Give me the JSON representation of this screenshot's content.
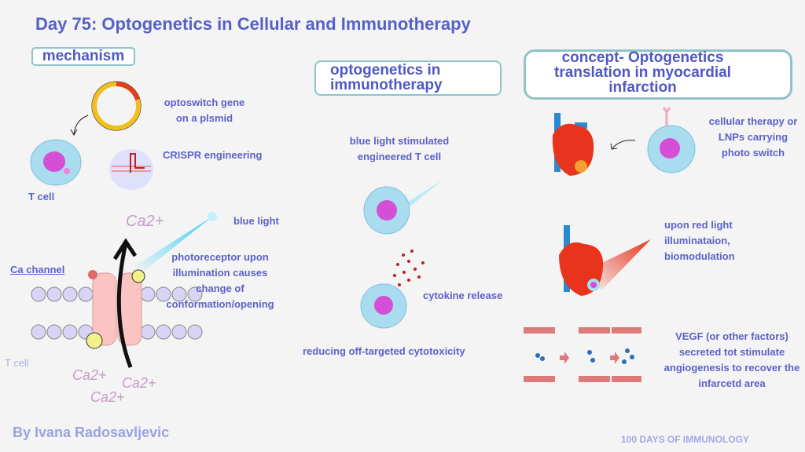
{
  "title": "Day 75: Optogenetics in Cellular and Immunotherapy",
  "sections": {
    "mechanism": {
      "heading": "mechanism",
      "plasmid_label": "optoswitch gene on a plsmid",
      "crispr_label": "CRISPR engineering",
      "tcell_label": "T cell",
      "blue_light_label": "blue light",
      "ca_channel_label": "Ca channel",
      "photoreceptor_label": "photoreceptor upon illumination causes change of conformation/opening",
      "membrane_tcell_label": "T cell",
      "ion_label": "Ca2+"
    },
    "immunotherapy": {
      "heading": "optogenetics in immunotherapy",
      "stimulated_label": "blue light stimulated engineered T cell",
      "cytokine_label": "cytokine release",
      "reducing_label": "reducing off-targeted cytotoxicity"
    },
    "myocardial": {
      "heading": "concept- Optogenetics translation in myocardial infarction",
      "therapy_label": "cellular therapy or LNPs carrying photo switch",
      "red_light_label": "upon red light illuminataion, biomodulation",
      "vegf_label": "VEGF (or other factors) secreted tot stimulate angiogenesis to recover the infarcetd area"
    }
  },
  "author": "By Ivana Radosavljevic",
  "series": "100 DAYS OF IMMUNOLOGY",
  "colors": {
    "text": "#5a62c8",
    "box_border": "#8ec3c8",
    "heart": "#e8341c",
    "cell": "#a9dcef",
    "nucleus": "#d54fd6"
  }
}
